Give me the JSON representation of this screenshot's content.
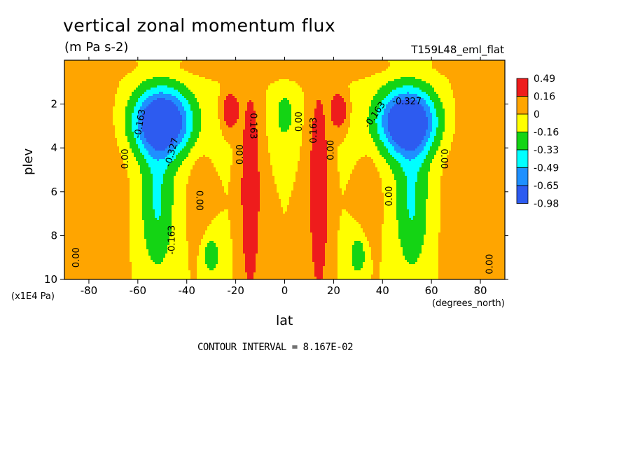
{
  "chart_data": {
    "type": "heatmap",
    "title": "vertical zonal momentum flux",
    "units": "(m Pa s-2)",
    "dataset": "T159L48_eml_flat",
    "xlabel": "lat",
    "xunit": "(degrees_north)",
    "ylabel": "plev",
    "yunit": "(x1E4 Pa)",
    "xlim": [
      -90,
      90
    ],
    "ylim": [
      10,
      0
    ],
    "xticks": [
      -80,
      -60,
      -40,
      -20,
      0,
      20,
      40,
      60,
      80
    ],
    "yticks": [
      2,
      4,
      6,
      8,
      10
    ],
    "contour_interval_text": "CONTOUR INTERVAL = 8.167E-02",
    "legend": {
      "placement": "right",
      "labels": [
        "0.49",
        "0.16",
        "0",
        "-0.16",
        "-0.33",
        "-0.49",
        "-0.65",
        "-0.98"
      ],
      "colors": [
        "#ee1c1c",
        "#ffa500",
        "#ffff00",
        "#14d414",
        "#00ffff",
        "#1e90ff",
        "#2d5bf0"
      ]
    },
    "features": [
      {
        "lat": -50,
        "plev": 2.8,
        "sx": 12,
        "sy": 1.5,
        "amp": -1.0
      },
      {
        "lat": 50,
        "plev": 2.8,
        "sx": 12,
        "sy": 1.5,
        "amp": -1.0
      },
      {
        "lat": -52,
        "plev": 6.5,
        "sx": 7,
        "sy": 3.2,
        "amp": -0.35
      },
      {
        "lat": 52,
        "plev": 6.5,
        "sx": 7,
        "sy": 3.2,
        "amp": -0.35
      },
      {
        "lat": -14,
        "plev": 6.0,
        "sx": 3.0,
        "sy": 3.6,
        "amp": 0.62
      },
      {
        "lat": 14,
        "plev": 6.0,
        "sx": 3.0,
        "sy": 3.6,
        "amp": 0.62
      },
      {
        "lat": -22,
        "plev": 2.3,
        "sx": 3.0,
        "sy": 0.7,
        "amp": 0.5
      },
      {
        "lat": 22,
        "plev": 2.3,
        "sx": 3.0,
        "sy": 0.7,
        "amp": 0.5
      },
      {
        "lat": -35,
        "plev": 6.2,
        "sx": 4.0,
        "sy": 2.2,
        "amp": 0.12
      },
      {
        "lat": 35,
        "plev": 6.2,
        "sx": 4.0,
        "sy": 2.2,
        "amp": 0.12
      },
      {
        "lat": 0,
        "plev": 2.5,
        "sx": 3.5,
        "sy": 1.0,
        "amp": -0.3
      },
      {
        "lat": -30,
        "plev": 8.9,
        "sx": 3.5,
        "sy": 0.9,
        "amp": -0.3
      },
      {
        "lat": 30,
        "plev": 8.9,
        "sx": 3.5,
        "sy": 0.9,
        "amp": -0.3
      },
      {
        "lat": -75,
        "plev": 5.5,
        "sx": 10,
        "sy": 5.0,
        "amp": 0.11
      },
      {
        "lat": 75,
        "plev": 5.5,
        "sx": 10,
        "sy": 5.0,
        "amp": 0.11
      },
      {
        "lat": 0,
        "plev": 0.4,
        "sx": 60,
        "sy": 0.4,
        "amp": 0.08
      }
    ],
    "contour_labels": [
      {
        "text": "-0.163",
        "lat": -59,
        "plev": 2.9,
        "rot": -80
      },
      {
        "text": "0.00",
        "lat": -65,
        "plev": 4.5,
        "rot": -90
      },
      {
        "text": "-0.327",
        "lat": -46,
        "plev": 4.2,
        "rot": -75
      },
      {
        "text": "-0.163",
        "lat": -46,
        "plev": 8.2,
        "rot": -90
      },
      {
        "text": "0.00",
        "lat": -35,
        "plev": 6.4,
        "rot": 90
      },
      {
        "text": "0.00",
        "lat": -18,
        "plev": 4.3,
        "rot": -90
      },
      {
        "text": "0.163",
        "lat": -13,
        "plev": 3.0,
        "rot": 90
      },
      {
        "text": "0.00",
        "lat": 6,
        "plev": 2.8,
        "rot": -90
      },
      {
        "text": "0.163",
        "lat": 12,
        "plev": 3.2,
        "rot": -90
      },
      {
        "text": "0.00",
        "lat": 19,
        "plev": 4.1,
        "rot": -90
      },
      {
        "text": "-0.163",
        "lat": 37,
        "plev": 2.5,
        "rot": -55
      },
      {
        "text": "-0.327",
        "lat": 50,
        "plev": 1.9,
        "rot": 0
      },
      {
        "text": "0.00",
        "lat": 43,
        "plev": 6.2,
        "rot": -90
      },
      {
        "text": "0.00",
        "lat": 65,
        "plev": 4.5,
        "rot": 90
      },
      {
        "text": "0.00",
        "lat": -85,
        "plev": 9.0,
        "rot": -90
      },
      {
        "text": "0.00",
        "lat": 84,
        "plev": 9.3,
        "rot": -90
      }
    ]
  }
}
